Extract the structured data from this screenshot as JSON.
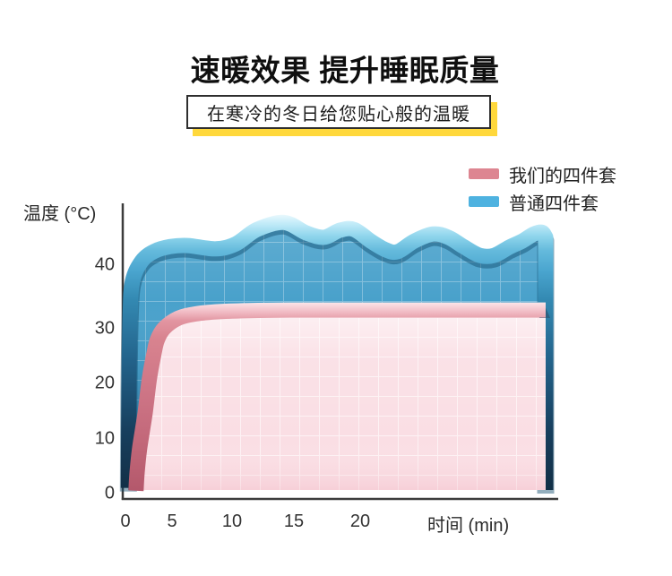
{
  "header": {
    "title": "速暖效果 提升睡眠质量",
    "subtitle": "在寒冷的冬日给您贴心般的温暖"
  },
  "legend": [
    {
      "key": "ours",
      "label": "我们的四件套",
      "color": "#dd8591"
    },
    {
      "key": "ordinary",
      "label": "普通四件套",
      "color": "#4eb2e0"
    }
  ],
  "colors": {
    "accent_yellow": "#ffd83c",
    "ours_pink_band": "#dd8591",
    "ours_pink_fill": "#fadee4",
    "ordinary_blue_band": "#4eb2e0",
    "ordinary_blue_fill": "#49a1cb",
    "axis": "#3c3c3c"
  },
  "chart_data": {
    "type": "area",
    "title": "",
    "xlabel": "时间 (min)",
    "ylabel": "温度 (°C)",
    "x_ticks": [
      "0",
      "5",
      "10",
      "15",
      "20"
    ],
    "y_ticks": [
      "0",
      "10",
      "20",
      "30",
      "40"
    ],
    "xlim": [
      0,
      36
    ],
    "ylim": [
      0,
      52
    ],
    "grid": "quilted white grid texture inside both areas",
    "legend_position": "top-right",
    "series": [
      {
        "name": "普通四件套",
        "key": "ordinary",
        "color": "#4eb2e0",
        "style": "rises almost instantly, then fluctuates (wavy top, unstable heat)",
        "points": [
          [
            0.25,
            2
          ],
          [
            0.3,
            20
          ],
          [
            0.4,
            33
          ],
          [
            0.6,
            39.5
          ],
          [
            1.4,
            43.2
          ],
          [
            2.5,
            45
          ],
          [
            3.8,
            45.8
          ],
          [
            5.3,
            46
          ],
          [
            7.7,
            45.4
          ],
          [
            9.4,
            46.3
          ],
          [
            11.2,
            48.9
          ],
          [
            13.5,
            50.2
          ],
          [
            15.4,
            48.3
          ],
          [
            16.9,
            47.5
          ],
          [
            18.3,
            48.8
          ],
          [
            19.5,
            48.9
          ],
          [
            20.9,
            46.8
          ],
          [
            22.2,
            45.2
          ],
          [
            23.2,
            44.9
          ],
          [
            24.6,
            46.8
          ],
          [
            26.2,
            48.1
          ],
          [
            27.5,
            47.5
          ],
          [
            28.8,
            45.8
          ],
          [
            30.2,
            44.2
          ],
          [
            31.4,
            44.2
          ],
          [
            32.7,
            45.7
          ],
          [
            33.8,
            46.8
          ],
          [
            34.8,
            48.1
          ],
          [
            35.5,
            48.4
          ],
          [
            35.8,
            47.5
          ]
        ]
      },
      {
        "name": "我们的四件套",
        "key": "ours",
        "color": "#dd8591",
        "style": "quick smooth rise, then perfectly stable comfortable temperature",
        "points": [
          [
            0.9,
            1.5
          ],
          [
            1.0,
            5
          ],
          [
            1.2,
            9
          ],
          [
            1.45,
            12.5
          ],
          [
            1.7,
            16
          ],
          [
            2.05,
            22
          ],
          [
            2.4,
            26
          ],
          [
            2.7,
            28.8
          ],
          [
            3.3,
            31
          ],
          [
            4.5,
            32.8
          ],
          [
            6,
            33.6
          ],
          [
            8,
            34
          ],
          [
            10.5,
            34.2
          ],
          [
            14,
            34.3
          ],
          [
            20,
            34.3
          ],
          [
            27,
            34.3
          ],
          [
            35.8,
            34.3
          ]
        ]
      }
    ]
  }
}
